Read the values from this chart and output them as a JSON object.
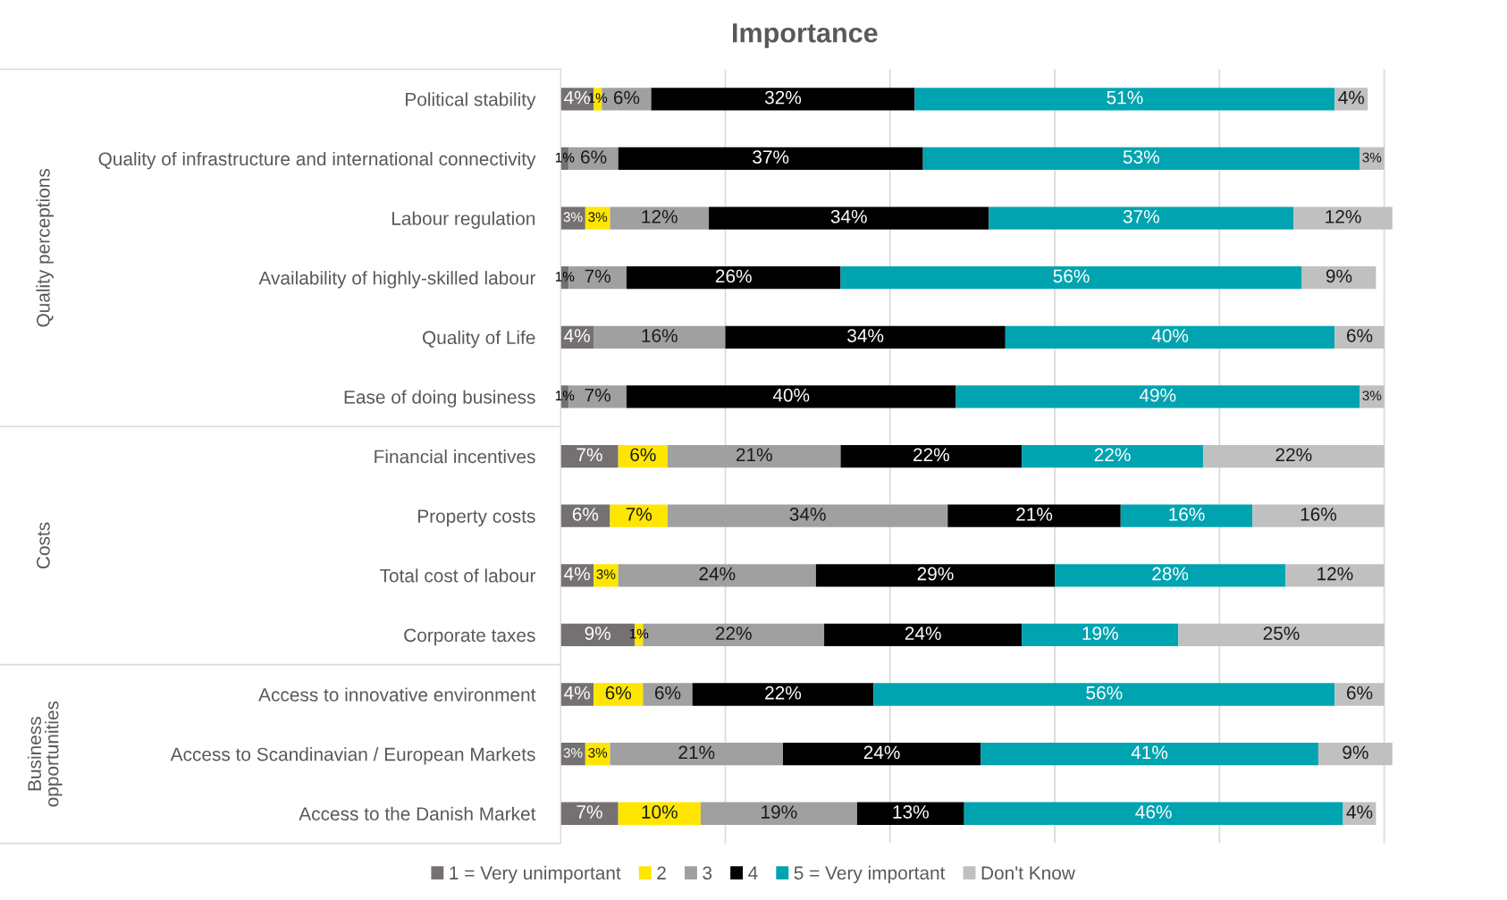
{
  "chart_data": {
    "type": "bar",
    "orientation": "horizontal",
    "stacked": true,
    "title": "Importance",
    "categories": [
      "Political stability",
      "Quality of infrastructure and international connectivity",
      "Labour regulation",
      "Availability of highly-skilled labour",
      "Quality of Life",
      "Ease of doing business",
      "Financial incentives",
      "Property costs",
      "Total cost of labour",
      "Corporate taxes",
      "Access to innovative environment",
      "Access to Scandinavian / European Markets",
      "Access to the Danish Market"
    ],
    "series": [
      {
        "name": "1 = Very unimportant",
        "color": "#767171",
        "values": [
          4,
          1,
          3,
          1,
          4,
          1,
          7,
          6,
          4,
          9,
          4,
          3,
          7
        ],
        "value_labels": [
          "4%",
          "1%",
          "3%",
          "1%",
          "4%",
          "1%",
          "7%",
          "6%",
          "4%",
          "9%",
          "4%",
          "3%",
          "7%"
        ]
      },
      {
        "name": "2",
        "color": "#ffe600",
        "values": [
          1,
          null,
          3,
          null,
          null,
          null,
          6,
          7,
          3,
          1,
          6,
          3,
          10
        ],
        "value_labels": [
          "1%",
          null,
          "3%",
          null,
          null,
          null,
          "6%",
          "7%",
          "3%",
          "1%",
          "6%",
          "3%",
          "10%"
        ]
      },
      {
        "name": "3",
        "color": "#a0a0a0",
        "values": [
          6,
          6,
          12,
          7,
          16,
          7,
          21,
          34,
          24,
          22,
          6,
          21,
          19
        ],
        "value_labels": [
          "6%",
          "6%",
          "12%",
          "7%",
          "16%",
          "7%",
          "21%",
          "34%",
          "24%",
          "22%",
          "6%",
          "21%",
          "19%"
        ]
      },
      {
        "name": "4",
        "color": "#000000",
        "values": [
          32,
          37,
          34,
          26,
          34,
          40,
          22,
          21,
          29,
          24,
          22,
          24,
          13
        ],
        "value_labels": [
          "32%",
          "37%",
          "34%",
          "26%",
          "34%",
          "40%",
          "22%",
          "21%",
          "29%",
          "24%",
          "22%",
          "24%",
          "13%"
        ]
      },
      {
        "name": "5 = Very important",
        "color": "#00a4b0",
        "values": [
          51,
          53,
          37,
          56,
          40,
          49,
          22,
          16,
          28,
          19,
          56,
          41,
          46
        ],
        "value_labels": [
          "51%",
          "53%",
          "37%",
          "56%",
          "40%",
          "49%",
          "22%",
          "16%",
          "28%",
          "19%",
          "56%",
          "41%",
          "46%"
        ]
      },
      {
        "name": "Don't Know",
        "color": "#c0c0c0",
        "values": [
          4,
          3,
          12,
          9,
          6,
          3,
          22,
          16,
          12,
          25,
          6,
          9,
          4
        ],
        "value_labels": [
          "4%",
          "3%",
          "12%",
          "9%",
          "6%",
          "3%",
          "22%",
          "16%",
          "12%",
          "25%",
          "6%",
          "9%",
          "4%"
        ]
      }
    ],
    "annotations": [
      "Quality perceptions",
      "Costs",
      "Business\nopportunities"
    ],
    "xlim": [
      0,
      101
    ],
    "xticks": [
      {
        "value": 0,
        "label": null
      },
      {
        "value": 20,
        "label": null
      },
      {
        "value": 40,
        "label": null
      },
      {
        "value": 60,
        "label": null
      },
      {
        "value": 80,
        "label": null
      },
      {
        "value": 100,
        "label": null
      }
    ],
    "tick_labels": "y",
    "grid": "x",
    "legend": "bottom"
  }
}
